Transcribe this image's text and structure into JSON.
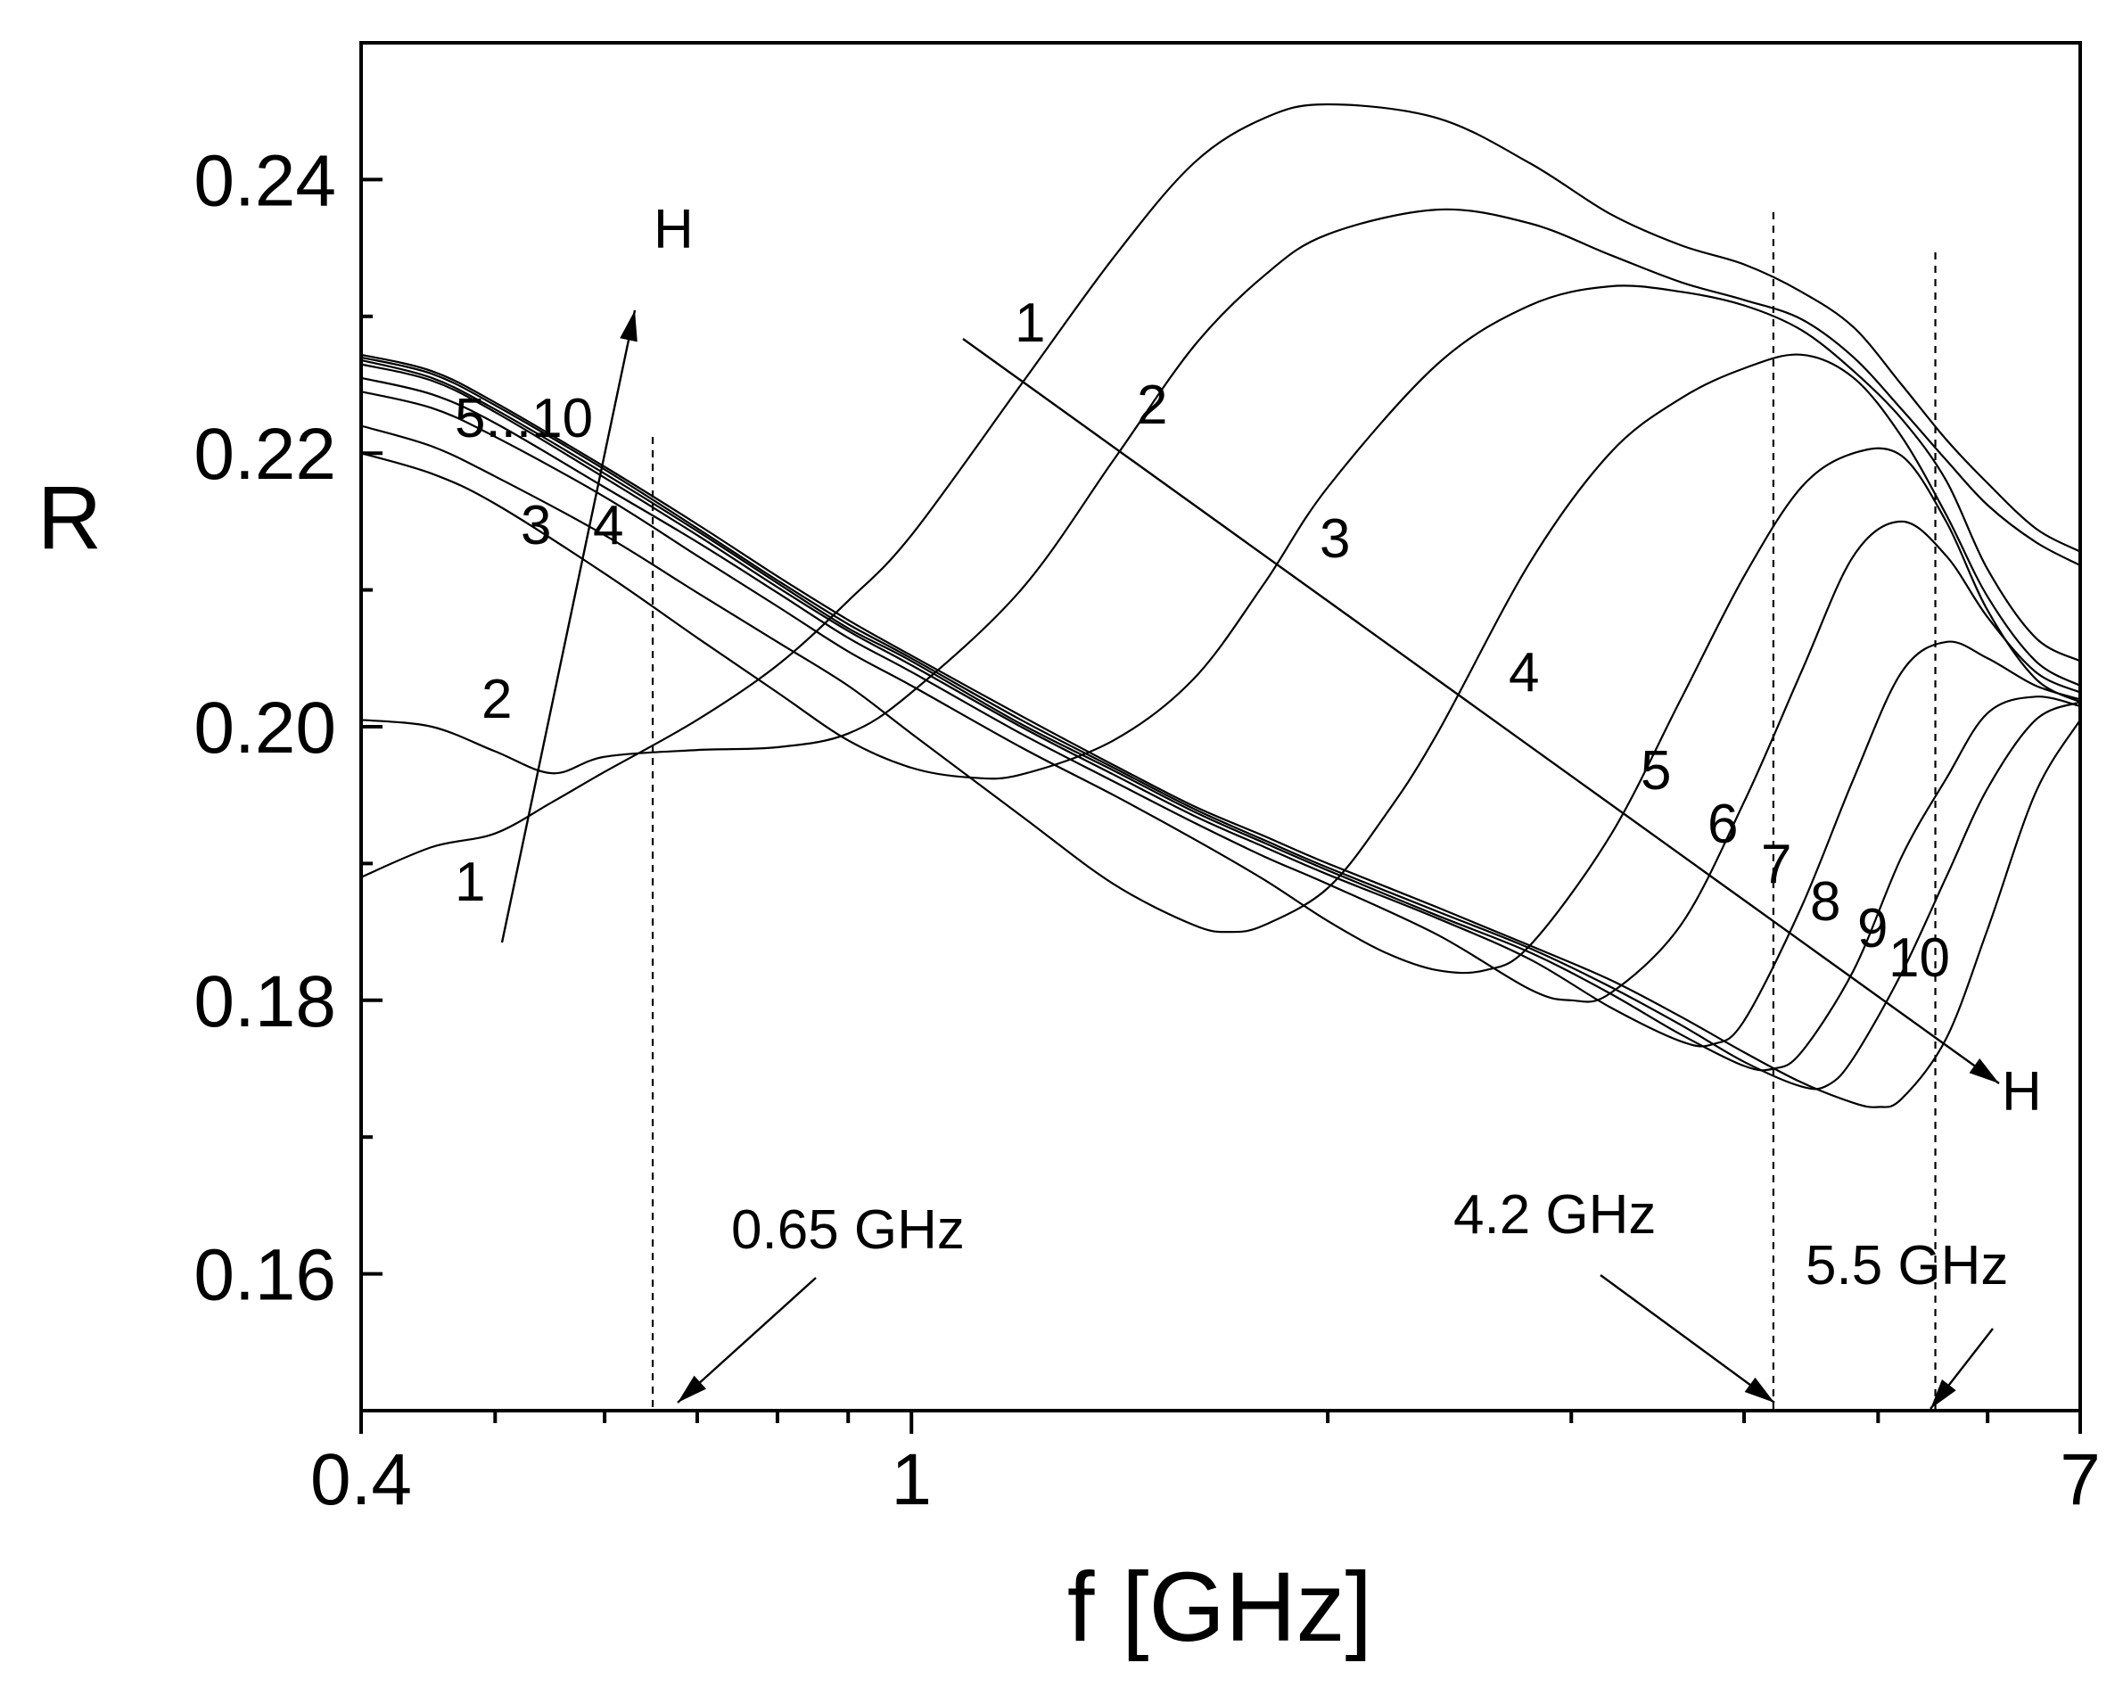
{
  "chart_data": {
    "type": "line",
    "title": "",
    "xlabel": "f [GHz]",
    "ylabel": "R",
    "xscale": "log",
    "xlim": [
      0.4,
      7
    ],
    "ylim": [
      0.15,
      0.25
    ],
    "x_ticks": [
      0.4,
      1,
      7
    ],
    "x_tick_labels": [
      "0.4",
      "1",
      "7"
    ],
    "y_ticks": [
      0.16,
      0.18,
      0.2,
      0.22,
      0.24
    ],
    "y_tick_labels": [
      "0.16",
      "0.18",
      "0.20",
      "0.22",
      "0.24"
    ],
    "grid": false,
    "legend": "none",
    "series": [
      {
        "label": "1",
        "points": [
          [
            0.4,
            0.189
          ],
          [
            0.45,
            0.1912
          ],
          [
            0.5,
            0.1922
          ],
          [
            0.55,
            0.1945
          ],
          [
            0.6,
            0.1967
          ],
          [
            0.7,
            0.2005
          ],
          [
            0.8,
            0.2045
          ],
          [
            0.9,
            0.2092
          ],
          [
            1.0,
            0.214
          ],
          [
            1.2,
            0.225
          ],
          [
            1.4,
            0.2343
          ],
          [
            1.6,
            0.2412
          ],
          [
            1.8,
            0.2445
          ],
          [
            2.0,
            0.2455
          ],
          [
            2.4,
            0.2445
          ],
          [
            2.8,
            0.2412
          ],
          [
            3.2,
            0.2375
          ],
          [
            3.6,
            0.2352
          ],
          [
            4.0,
            0.2338
          ],
          [
            4.4,
            0.2318
          ],
          [
            4.8,
            0.2292
          ],
          [
            5.2,
            0.225
          ],
          [
            5.6,
            0.221
          ],
          [
            6.0,
            0.2178
          ],
          [
            6.5,
            0.2145
          ],
          [
            7.0,
            0.2128
          ]
        ]
      },
      {
        "label": "2",
        "points": [
          [
            0.4,
            0.2005
          ],
          [
            0.45,
            0.2
          ],
          [
            0.5,
            0.1982
          ],
          [
            0.55,
            0.1966
          ],
          [
            0.6,
            0.1978
          ],
          [
            0.7,
            0.1983
          ],
          [
            0.8,
            0.1985
          ],
          [
            0.9,
            0.1995
          ],
          [
            1.0,
            0.2025
          ],
          [
            1.2,
            0.21
          ],
          [
            1.4,
            0.2195
          ],
          [
            1.6,
            0.2278
          ],
          [
            1.8,
            0.233
          ],
          [
            2.0,
            0.236
          ],
          [
            2.4,
            0.2378
          ],
          [
            2.8,
            0.2368
          ],
          [
            3.2,
            0.2345
          ],
          [
            3.6,
            0.2325
          ],
          [
            4.0,
            0.2312
          ],
          [
            4.4,
            0.2298
          ],
          [
            4.8,
            0.227
          ],
          [
            5.2,
            0.2232
          ],
          [
            5.6,
            0.2195
          ],
          [
            6.0,
            0.2162
          ],
          [
            6.5,
            0.2135
          ],
          [
            7.0,
            0.2118
          ]
        ]
      },
      {
        "label": "3",
        "points": [
          [
            0.4,
            0.22
          ],
          [
            0.45,
            0.2185
          ],
          [
            0.5,
            0.2163
          ],
          [
            0.6,
            0.2112
          ],
          [
            0.7,
            0.2065
          ],
          [
            0.8,
            0.2025
          ],
          [
            0.9,
            0.199
          ],
          [
            1.0,
            0.197
          ],
          [
            1.1,
            0.1963
          ],
          [
            1.2,
            0.1965
          ],
          [
            1.4,
            0.199
          ],
          [
            1.6,
            0.2035
          ],
          [
            1.8,
            0.2105
          ],
          [
            2.0,
            0.2175
          ],
          [
            2.4,
            0.2265
          ],
          [
            2.8,
            0.2308
          ],
          [
            3.2,
            0.2322
          ],
          [
            3.6,
            0.2318
          ],
          [
            4.0,
            0.2308
          ],
          [
            4.4,
            0.229
          ],
          [
            4.8,
            0.226
          ],
          [
            5.2,
            0.2225
          ],
          [
            5.6,
            0.218
          ],
          [
            6.0,
            0.2115
          ],
          [
            6.5,
            0.2065
          ],
          [
            7.0,
            0.2048
          ]
        ]
      },
      {
        "label": "4",
        "points": [
          [
            0.4,
            0.222
          ],
          [
            0.45,
            0.2205
          ],
          [
            0.5,
            0.2183
          ],
          [
            0.6,
            0.214
          ],
          [
            0.7,
            0.2098
          ],
          [
            0.8,
            0.2062
          ],
          [
            0.9,
            0.203
          ],
          [
            1.0,
            0.1995
          ],
          [
            1.2,
            0.1935
          ],
          [
            1.4,
            0.1885
          ],
          [
            1.6,
            0.1855
          ],
          [
            1.7,
            0.185
          ],
          [
            1.8,
            0.1855
          ],
          [
            2.0,
            0.1882
          ],
          [
            2.2,
            0.1935
          ],
          [
            2.4,
            0.1995
          ],
          [
            2.8,
            0.212
          ],
          [
            3.2,
            0.22
          ],
          [
            3.6,
            0.224
          ],
          [
            4.0,
            0.2262
          ],
          [
            4.4,
            0.2272
          ],
          [
            4.8,
            0.2255
          ],
          [
            5.2,
            0.2212
          ],
          [
            5.6,
            0.2155
          ],
          [
            6.0,
            0.2095
          ],
          [
            6.5,
            0.2048
          ],
          [
            7.0,
            0.203
          ]
        ]
      },
      {
        "label": "5",
        "points": [
          [
            0.4,
            0.2245
          ],
          [
            0.45,
            0.2233
          ],
          [
            0.5,
            0.2212
          ],
          [
            0.6,
            0.2168
          ],
          [
            0.7,
            0.2125
          ],
          [
            0.8,
            0.2088
          ],
          [
            0.9,
            0.2055
          ],
          [
            1.0,
            0.203
          ],
          [
            1.2,
            0.1985
          ],
          [
            1.4,
            0.195
          ],
          [
            1.6,
            0.1918
          ],
          [
            1.8,
            0.1888
          ],
          [
            2.0,
            0.1858
          ],
          [
            2.2,
            0.1835
          ],
          [
            2.4,
            0.1822
          ],
          [
            2.6,
            0.1822
          ],
          [
            2.8,
            0.184
          ],
          [
            3.2,
            0.192
          ],
          [
            3.6,
            0.202
          ],
          [
            4.0,
            0.211
          ],
          [
            4.4,
            0.2175
          ],
          [
            4.8,
            0.22
          ],
          [
            5.2,
            0.2198
          ],
          [
            5.6,
            0.215
          ],
          [
            6.0,
            0.2085
          ],
          [
            6.5,
            0.2035
          ],
          [
            7.0,
            0.2018
          ]
        ]
      },
      {
        "label": "6",
        "points": [
          [
            0.4,
            0.2255
          ],
          [
            0.45,
            0.2243
          ],
          [
            0.5,
            0.2222
          ],
          [
            0.6,
            0.2175
          ],
          [
            0.7,
            0.2135
          ],
          [
            0.8,
            0.2098
          ],
          [
            0.9,
            0.2065
          ],
          [
            1.0,
            0.204
          ],
          [
            1.2,
            0.1995
          ],
          [
            1.4,
            0.196
          ],
          [
            1.6,
            0.193
          ],
          [
            1.8,
            0.1905
          ],
          [
            2.0,
            0.1885
          ],
          [
            2.4,
            0.1848
          ],
          [
            2.8,
            0.1808
          ],
          [
            3.0,
            0.18
          ],
          [
            3.2,
            0.1805
          ],
          [
            3.6,
            0.1855
          ],
          [
            4.0,
            0.1945
          ],
          [
            4.4,
            0.204
          ],
          [
            4.8,
            0.2125
          ],
          [
            5.2,
            0.215
          ],
          [
            5.6,
            0.2125
          ],
          [
            6.0,
            0.208
          ],
          [
            6.5,
            0.204
          ],
          [
            7.0,
            0.2025
          ]
        ]
      },
      {
        "label": "7",
        "points": [
          [
            0.4,
            0.2265
          ],
          [
            0.45,
            0.2253
          ],
          [
            0.5,
            0.223
          ],
          [
            0.6,
            0.2182
          ],
          [
            0.7,
            0.214
          ],
          [
            0.8,
            0.2102
          ],
          [
            0.9,
            0.207
          ],
          [
            1.0,
            0.2045
          ],
          [
            1.2,
            0.2
          ],
          [
            1.4,
            0.1965
          ],
          [
            1.6,
            0.1935
          ],
          [
            1.8,
            0.1912
          ],
          [
            2.0,
            0.1892
          ],
          [
            2.4,
            0.186
          ],
          [
            2.8,
            0.183
          ],
          [
            3.2,
            0.1795
          ],
          [
            3.6,
            0.177
          ],
          [
            3.8,
            0.1768
          ],
          [
            4.0,
            0.1785
          ],
          [
            4.4,
            0.1868
          ],
          [
            4.8,
            0.1962
          ],
          [
            5.2,
            0.204
          ],
          [
            5.6,
            0.2062
          ],
          [
            6.0,
            0.205
          ],
          [
            6.5,
            0.203
          ],
          [
            7.0,
            0.202
          ]
        ]
      },
      {
        "label": "8",
        "points": [
          [
            0.4,
            0.2268
          ],
          [
            0.45,
            0.2255
          ],
          [
            0.5,
            0.2232
          ],
          [
            0.6,
            0.2185
          ],
          [
            0.7,
            0.2143
          ],
          [
            0.8,
            0.2105
          ],
          [
            0.9,
            0.2072
          ],
          [
            1.0,
            0.2048
          ],
          [
            1.2,
            0.2002
          ],
          [
            1.4,
            0.1968
          ],
          [
            1.6,
            0.1938
          ],
          [
            1.8,
            0.1915
          ],
          [
            2.0,
            0.1895
          ],
          [
            2.4,
            0.1862
          ],
          [
            2.8,
            0.1835
          ],
          [
            3.2,
            0.1805
          ],
          [
            3.6,
            0.1775
          ],
          [
            4.0,
            0.1752
          ],
          [
            4.2,
            0.175
          ],
          [
            4.4,
            0.1762
          ],
          [
            4.8,
            0.1822
          ],
          [
            5.2,
            0.1905
          ],
          [
            5.6,
            0.1962
          ],
          [
            6.0,
            0.201
          ],
          [
            6.5,
            0.2022
          ],
          [
            7.0,
            0.2015
          ]
        ]
      },
      {
        "label": "9",
        "points": [
          [
            0.4,
            0.227
          ],
          [
            0.45,
            0.2258
          ],
          [
            0.5,
            0.2235
          ],
          [
            0.6,
            0.2188
          ],
          [
            0.7,
            0.2145
          ],
          [
            0.8,
            0.2107
          ],
          [
            0.9,
            0.2075
          ],
          [
            1.0,
            0.205
          ],
          [
            1.2,
            0.2005
          ],
          [
            1.4,
            0.197
          ],
          [
            1.6,
            0.194
          ],
          [
            1.8,
            0.1917
          ],
          [
            2.0,
            0.1897
          ],
          [
            2.4,
            0.1865
          ],
          [
            2.8,
            0.1838
          ],
          [
            3.2,
            0.181
          ],
          [
            3.6,
            0.1782
          ],
          [
            4.0,
            0.1755
          ],
          [
            4.4,
            0.1737
          ],
          [
            4.6,
            0.1738
          ],
          [
            4.8,
            0.1758
          ],
          [
            5.2,
            0.182
          ],
          [
            5.6,
            0.189
          ],
          [
            6.0,
            0.1955
          ],
          [
            6.5,
            0.2005
          ],
          [
            7.0,
            0.2018
          ]
        ]
      },
      {
        "label": "10",
        "points": [
          [
            0.4,
            0.2272
          ],
          [
            0.45,
            0.226
          ],
          [
            0.5,
            0.2237
          ],
          [
            0.6,
            0.219
          ],
          [
            0.7,
            0.2148
          ],
          [
            0.8,
            0.211
          ],
          [
            0.9,
            0.2078
          ],
          [
            1.0,
            0.2052
          ],
          [
            1.2,
            0.2008
          ],
          [
            1.4,
            0.1972
          ],
          [
            1.6,
            0.1942
          ],
          [
            1.8,
            0.192
          ],
          [
            2.0,
            0.19
          ],
          [
            2.4,
            0.1868
          ],
          [
            2.8,
            0.184
          ],
          [
            3.2,
            0.1815
          ],
          [
            3.6,
            0.1788
          ],
          [
            4.0,
            0.1762
          ],
          [
            4.4,
            0.174
          ],
          [
            4.8,
            0.1725
          ],
          [
            5.0,
            0.1722
          ],
          [
            5.2,
            0.1728
          ],
          [
            5.6,
            0.1772
          ],
          [
            6.0,
            0.1852
          ],
          [
            6.5,
            0.1952
          ],
          [
            7.0,
            0.2005
          ]
        ]
      }
    ],
    "vertical_guides": [
      0.65,
      4.2,
      5.5
    ],
    "annotations": {
      "freq_065": "0.65 GHz",
      "freq_42": "4.2 GHz",
      "freq_55": "5.5 GHz",
      "arrow_left": "H",
      "arrow_right": "H",
      "left_group": "5...10"
    },
    "left_labels": [
      "1",
      "2",
      "3",
      "4"
    ],
    "right_labels": [
      "1",
      "2",
      "3",
      "4",
      "5",
      "6",
      "7",
      "8",
      "9",
      "10"
    ]
  }
}
